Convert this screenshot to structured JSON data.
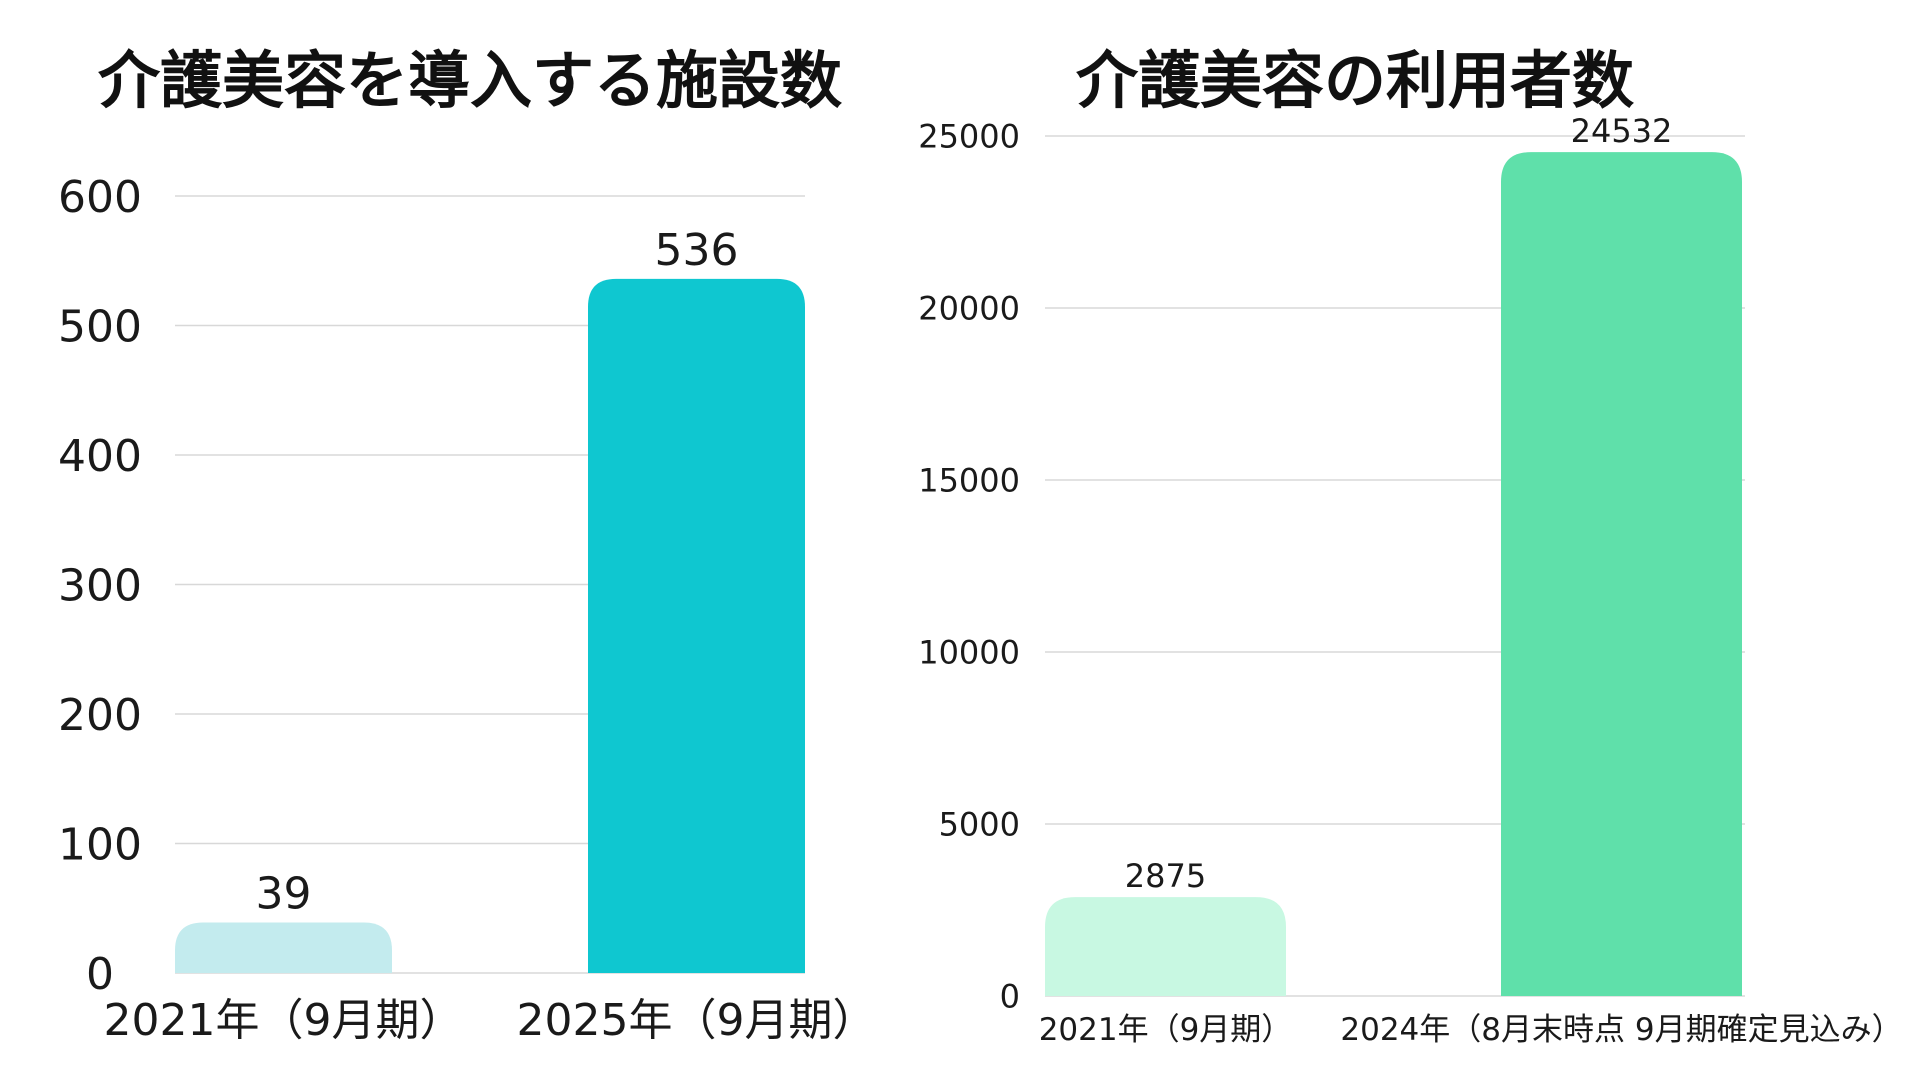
{
  "chart_data": [
    {
      "type": "bar",
      "title": "介護美容を導入する施設数",
      "categories": [
        "2021年（9月期）",
        "2025年（9月期）"
      ],
      "values": [
        39,
        536
      ],
      "ylim": [
        0,
        600
      ],
      "yticks": [
        0,
        100,
        200,
        300,
        400,
        500,
        600
      ],
      "grid": true,
      "colors": [
        "#c3ebee",
        "#0fc7d0"
      ]
    },
    {
      "type": "bar",
      "title": "介護美容の利用者数",
      "categories": [
        "2021年（9月期）",
        "2024年（8月末時点 9月期確定見込み）"
      ],
      "values": [
        2875,
        24532
      ],
      "ylim": [
        0,
        25000
      ],
      "yticks": [
        0,
        5000,
        10000,
        15000,
        20000,
        25000
      ],
      "grid": true,
      "colors": [
        "#c8f8e2",
        "#5fe0aa"
      ]
    }
  ]
}
